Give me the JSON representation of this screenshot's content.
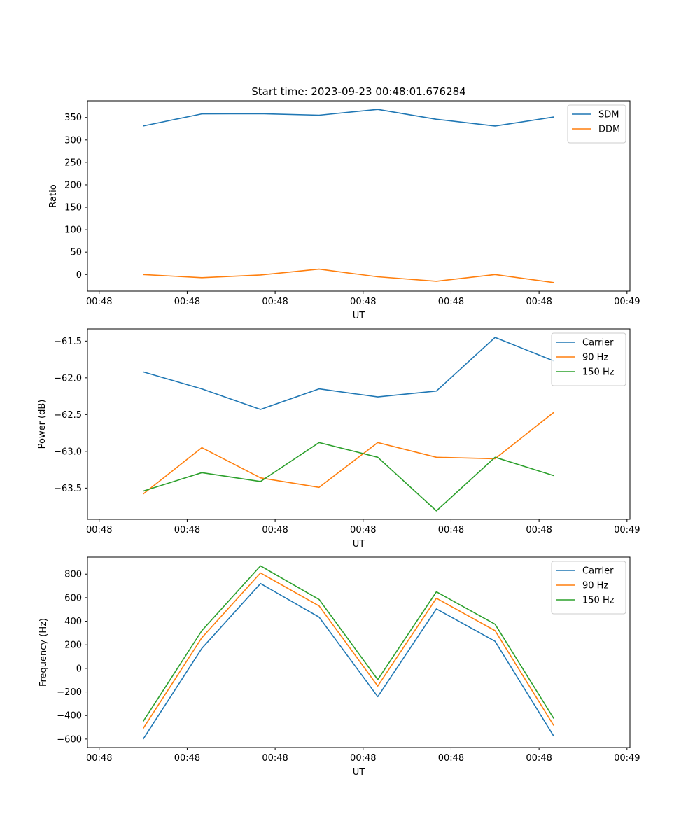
{
  "chart_data": [
    {
      "type": "line",
      "title": "Start time: 2023-09-23 00:48:01.676284",
      "xlabel": "UT",
      "ylabel": "Ratio",
      "x": [
        0,
        1,
        2,
        3,
        4,
        5,
        6,
        7
      ],
      "xticks": {
        "values": [
          -0.75,
          0.75,
          2.25,
          3.75,
          5.25,
          6.75,
          8.25
        ],
        "labels": [
          "00:48",
          "00:48",
          "00:48",
          "00:48",
          "00:48",
          "00:48",
          "00:49"
        ]
      },
      "xlim": [
        -0.95,
        8.3
      ],
      "ylim": [
        -37,
        387
      ],
      "yticks": [
        0,
        50,
        100,
        150,
        200,
        250,
        300,
        350
      ],
      "ytick_labels": [
        "0",
        "50",
        "100",
        "150",
        "200",
        "250",
        "300",
        "350"
      ],
      "grid": false,
      "legend": "top-right",
      "series": [
        {
          "name": "SDM",
          "color": "#1f77b4",
          "values": [
            331,
            358,
            358.5,
            355,
            368,
            346,
            331,
            351
          ]
        },
        {
          "name": "DDM",
          "color": "#ff7f0e",
          "values": [
            0,
            -7,
            -1,
            12,
            -5,
            -15,
            0,
            -18
          ]
        }
      ]
    },
    {
      "type": "line",
      "title": "",
      "xlabel": "UT",
      "ylabel": "Power (dB)",
      "x": [
        0,
        1,
        2,
        3,
        4,
        5,
        6,
        7
      ],
      "xticks": {
        "values": [
          -0.75,
          0.75,
          2.25,
          3.75,
          5.25,
          6.75,
          8.25
        ],
        "labels": [
          "00:48",
          "00:48",
          "00:48",
          "00:48",
          "00:48",
          "00:48",
          "00:49"
        ]
      },
      "xlim": [
        -0.95,
        8.3
      ],
      "ylim": [
        -63.925,
        -61.335
      ],
      "yticks": [
        -63.5,
        -63.0,
        -62.5,
        -62.0,
        -61.5
      ],
      "ytick_labels": [
        "−63.5",
        "−63.0",
        "−62.5",
        "−62.0",
        "−61.5"
      ],
      "grid": false,
      "legend": "top-right",
      "series": [
        {
          "name": "Carrier",
          "color": "#1f77b4",
          "values": [
            -61.92,
            -62.15,
            -62.43,
            -62.15,
            -62.26,
            -62.18,
            -61.45,
            -61.77
          ]
        },
        {
          "name": "90 Hz",
          "color": "#ff7f0e",
          "values": [
            -63.58,
            -62.95,
            -63.36,
            -63.49,
            -62.88,
            -63.08,
            -63.1,
            -62.47
          ]
        },
        {
          "name": "150 Hz",
          "color": "#2ca02c",
          "values": [
            -63.54,
            -63.29,
            -63.41,
            -62.88,
            -63.08,
            -63.81,
            -63.08,
            -63.33
          ]
        }
      ]
    },
    {
      "type": "line",
      "title": "",
      "xlabel": "UT",
      "ylabel": "Frequency (Hz)",
      "x": [
        0,
        1,
        2,
        3,
        4,
        5,
        6,
        7
      ],
      "xticks": {
        "values": [
          -0.75,
          0.75,
          2.25,
          3.75,
          5.25,
          6.75,
          8.25
        ],
        "labels": [
          "00:48",
          "00:48",
          "00:48",
          "00:48",
          "00:48",
          "00:48",
          "00:49"
        ]
      },
      "xlim": [
        -0.95,
        8.3
      ],
      "ylim": [
        -672,
        944
      ],
      "yticks": [
        -600,
        -400,
        -200,
        0,
        200,
        400,
        600,
        800
      ],
      "ytick_labels": [
        "−600",
        "−400",
        "−200",
        "0",
        "200",
        "400",
        "600",
        "800"
      ],
      "grid": false,
      "legend": "top-right",
      "series": [
        {
          "name": "Carrier",
          "color": "#1f77b4",
          "values": [
            -600,
            170,
            720,
            435,
            -240,
            505,
            230,
            -575
          ]
        },
        {
          "name": "90 Hz",
          "color": "#ff7f0e",
          "values": [
            -510,
            260,
            810,
            530,
            -150,
            595,
            320,
            -485
          ]
        },
        {
          "name": "150 Hz",
          "color": "#2ca02c",
          "values": [
            -450,
            320,
            870,
            585,
            -95,
            650,
            375,
            -425
          ]
        }
      ]
    }
  ]
}
